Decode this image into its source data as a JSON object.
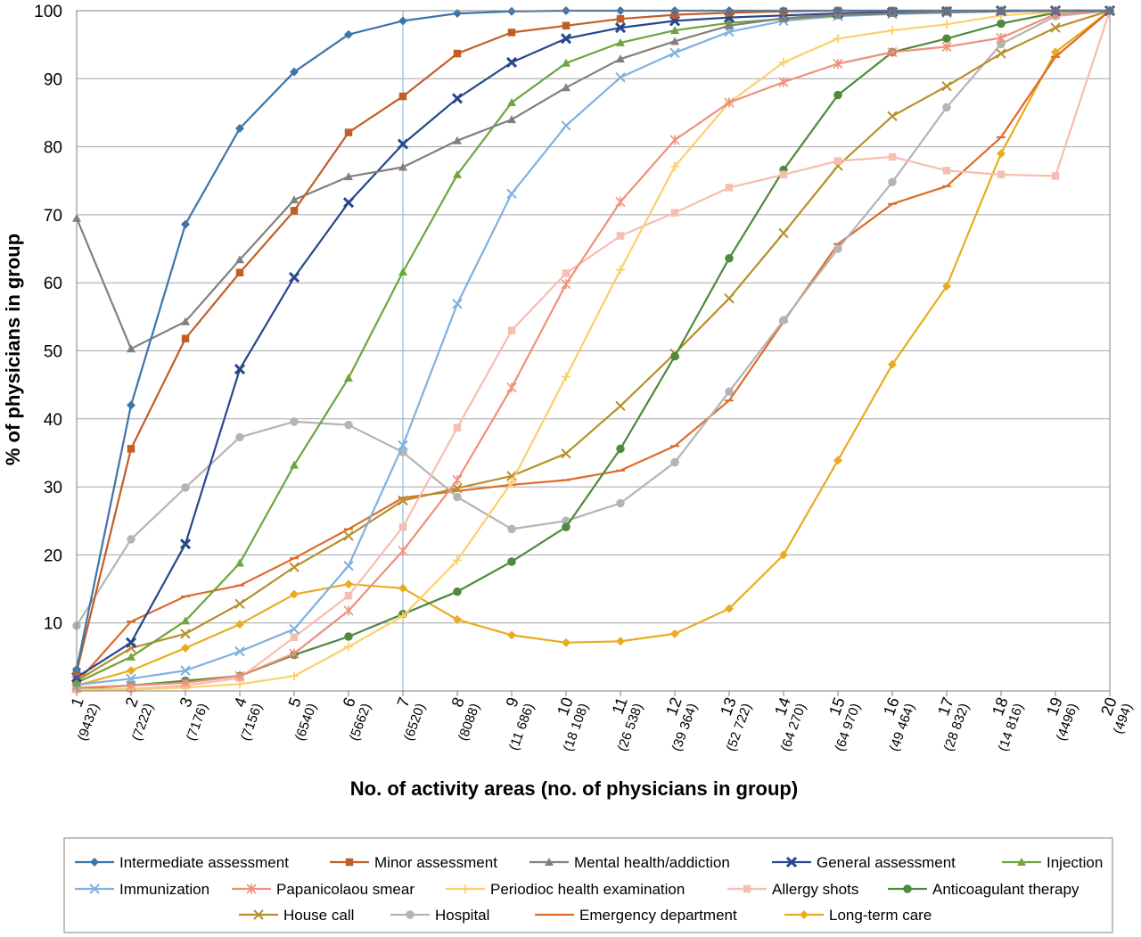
{
  "chart_data": {
    "type": "line",
    "xlabel": "No. of activity areas (no. of physicians in group)",
    "ylabel": "% of physicians in group",
    "ylim": [
      0,
      100
    ],
    "yticks": [
      "10",
      "20",
      "30",
      "40",
      "50",
      "60",
      "70",
      "80",
      "90",
      "100"
    ],
    "grid": "horizontal",
    "legend_position": "bottom",
    "reference_line_x": 7,
    "categories": [
      "1",
      "2",
      "3",
      "4",
      "5",
      "6",
      "7",
      "8",
      "9",
      "10",
      "11",
      "12",
      "13",
      "14",
      "15",
      "16",
      "17",
      "18",
      "19",
      "20"
    ],
    "group_sizes": [
      "(9432)",
      "(7222)",
      "(7176)",
      "(7156)",
      "(6540)",
      "(5662)",
      "(6520)",
      "(8088)",
      "(11 686)",
      "(18 108)",
      "(26 538)",
      "(39 364)",
      "(52 722)",
      "(64 270)",
      "(64 970)",
      "(49 464)",
      "(28 832)",
      "(14 816)",
      "(4496)",
      "(494)"
    ],
    "series": [
      {
        "name": "Intermediate assessment",
        "color": "#3e75a8",
        "marker": "diamond",
        "values": [
          3.2,
          42.0,
          68.6,
          82.7,
          91.0,
          96.5,
          98.5,
          99.6,
          99.9,
          100,
          100,
          100,
          100,
          100,
          100,
          100,
          100,
          100,
          100,
          100
        ]
      },
      {
        "name": "Minor assessment",
        "color": "#c15e25",
        "marker": "square",
        "values": [
          2.8,
          35.6,
          51.8,
          61.5,
          70.6,
          82.1,
          87.4,
          93.7,
          96.8,
          97.8,
          98.8,
          99.4,
          99.7,
          99.9,
          100,
          100,
          100,
          100,
          100,
          100
        ]
      },
      {
        "name": "Mental health/addiction",
        "color": "#808080",
        "marker": "triangle",
        "values": [
          69.5,
          50.3,
          54.3,
          63.4,
          72.2,
          75.6,
          77.0,
          80.9,
          84.0,
          88.7,
          92.9,
          95.5,
          97.8,
          98.9,
          99.4,
          99.6,
          99.8,
          99.9,
          100,
          100
        ]
      },
      {
        "name": "General assessment",
        "color": "#27478c",
        "marker": "star",
        "values": [
          2.0,
          7.1,
          21.6,
          47.3,
          60.8,
          71.8,
          80.4,
          87.1,
          92.4,
          95.9,
          97.5,
          98.5,
          99.0,
          99.3,
          99.6,
          99.8,
          99.9,
          100,
          100,
          100
        ]
      },
      {
        "name": "Injection",
        "color": "#6ca63c",
        "marker": "triangle",
        "values": [
          1.2,
          5.0,
          10.3,
          18.8,
          33.2,
          46.0,
          61.6,
          75.9,
          86.5,
          92.3,
          95.3,
          97.1,
          98.2,
          98.8,
          99.3,
          99.6,
          99.8,
          99.9,
          100,
          100
        ]
      },
      {
        "name": "Immunization",
        "color": "#7fb1e0",
        "marker": "x",
        "values": [
          0.9,
          1.8,
          3.0,
          5.8,
          9.1,
          18.4,
          36.1,
          56.9,
          73.1,
          83.1,
          90.2,
          93.8,
          96.9,
          98.5,
          99.2,
          99.5,
          99.7,
          99.9,
          100,
          100
        ]
      },
      {
        "name": "Papanicolaou smear",
        "color": "#f0907a",
        "marker": "asterisk",
        "values": [
          0.5,
          0.8,
          1.2,
          2.2,
          5.5,
          11.8,
          20.6,
          31.0,
          44.6,
          59.8,
          71.9,
          81.0,
          86.5,
          89.5,
          92.2,
          93.9,
          94.7,
          96.0,
          99.5,
          100
        ]
      },
      {
        "name": "Periodioc health examination",
        "color": "#fcd06a",
        "marker": "plus",
        "values": [
          0.2,
          0.2,
          0.5,
          1.0,
          2.2,
          6.5,
          11.0,
          19.2,
          30.7,
          46.2,
          61.9,
          77.1,
          86.5,
          92.4,
          95.9,
          97.1,
          98.0,
          99.3,
          99.8,
          100
        ]
      },
      {
        "name": "Allergy shots",
        "color": "#f7bdb0",
        "marker": "square",
        "values": [
          0.2,
          0.3,
          0.8,
          1.9,
          7.9,
          14.0,
          24.1,
          38.7,
          53.0,
          61.4,
          66.9,
          70.3,
          74.0,
          75.9,
          77.9,
          78.5,
          76.5,
          75.9,
          75.7,
          100
        ]
      },
      {
        "name": "Anticoagulant therapy",
        "color": "#4e8a3c",
        "marker": "circle",
        "values": [
          0.3,
          0.8,
          1.5,
          2.2,
          5.3,
          8.0,
          11.3,
          14.6,
          19.0,
          24.1,
          35.6,
          49.2,
          63.6,
          76.6,
          87.6,
          93.9,
          95.9,
          98.1,
          99.7,
          100
        ]
      },
      {
        "name": "House call",
        "color": "#b8902a",
        "marker": "x",
        "values": [
          1.5,
          6.3,
          8.4,
          12.8,
          18.2,
          22.8,
          28.0,
          29.8,
          31.6,
          34.9,
          41.9,
          49.6,
          57.7,
          67.3,
          77.2,
          84.5,
          88.9,
          93.7,
          97.5,
          100
        ]
      },
      {
        "name": "Hospital",
        "color": "#b4b4b4",
        "marker": "circle",
        "values": [
          9.6,
          22.3,
          29.9,
          37.3,
          39.6,
          39.1,
          35.1,
          28.5,
          23.8,
          25.0,
          27.6,
          33.6,
          44.0,
          54.5,
          65.0,
          74.8,
          85.8,
          95.1,
          99.2,
          100
        ]
      },
      {
        "name": "Emergency department",
        "color": "#dd6b2a",
        "marker": "dash",
        "values": [
          1.2,
          10.2,
          13.9,
          15.5,
          19.5,
          23.8,
          28.4,
          29.4,
          30.3,
          31.0,
          32.4,
          36.0,
          42.7,
          54.3,
          65.7,
          71.6,
          74.2,
          81.4,
          93.2,
          100
        ]
      },
      {
        "name": "Long-term care",
        "color": "#e8ac1e",
        "marker": "diamond",
        "values": [
          0.8,
          3.0,
          6.3,
          9.8,
          14.2,
          15.7,
          15.1,
          10.5,
          8.2,
          7.1,
          7.3,
          8.4,
          12.1,
          20.0,
          33.9,
          48.0,
          59.5,
          79.0,
          93.9,
          100
        ]
      }
    ]
  }
}
